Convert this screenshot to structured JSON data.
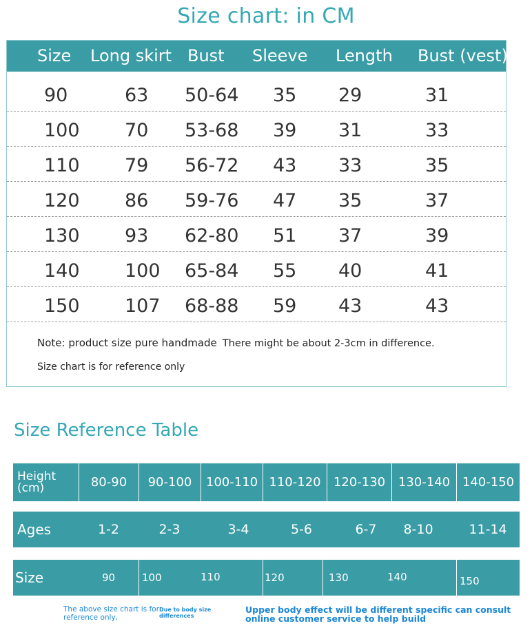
{
  "size_chart": {
    "title": "Size chart:  in CM",
    "headers": [
      "Size",
      "Long skirt",
      "Bust",
      "Sleeve",
      "Length",
      "Bust (vest)"
    ],
    "rows": [
      [
        "90",
        "63",
        "50-64",
        "35",
        "29",
        "31"
      ],
      [
        "100",
        "70",
        "53-68",
        "39",
        "31",
        "33"
      ],
      [
        "110",
        "79",
        "56-72",
        "43",
        "33",
        "35"
      ],
      [
        "120",
        "86",
        "59-76",
        "47",
        "35",
        "37"
      ],
      [
        "130",
        "93",
        "62-80",
        "51",
        "37",
        "39"
      ],
      [
        "140",
        "100",
        "65-84",
        "55",
        "40",
        "41"
      ],
      [
        "150",
        "107",
        "68-88",
        "59",
        "43",
        "43"
      ]
    ],
    "note_a": "Note: product size pure handmade",
    "note_b": "There might be about 2-3cm in difference.",
    "note_c": "Size chart is for reference only"
  },
  "reference": {
    "title": "Size Reference Table",
    "height_label": "Height (cm)",
    "heights": [
      "80-90",
      "90-100",
      "100-110",
      "110-120",
      "120-130",
      "130-140",
      "140-150"
    ],
    "ages_label": "Ages",
    "ages": [
      "1-2",
      "2-3",
      "3-4",
      "5-6",
      "6-7",
      "8-10",
      "11-14"
    ],
    "size_label": "Size",
    "sizes": [
      "90",
      "100",
      "110",
      "120",
      "130",
      "140",
      "150"
    ]
  },
  "footer": {
    "note1_l1": "The above size chart is for",
    "note1_l2": "reference only,",
    "note2_l1": "Due to body size",
    "note2_l2": "differences",
    "note3_l1": "Upper body effect will be different specific can consult",
    "note3_l2": "online customer service to help build"
  },
  "colors": {
    "accent": "#3a9ca4",
    "title": "#34a8b4",
    "footer_text": "#1a86d6"
  }
}
